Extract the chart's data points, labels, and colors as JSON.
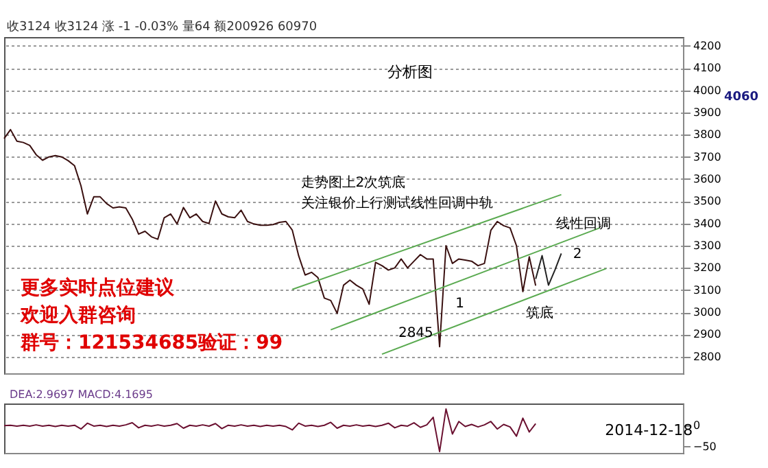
{
  "chart_data": [
    {
      "type": "line",
      "title": "分析图",
      "categories": [
        null,
        null,
        null,
        null,
        null,
        null,
        null,
        null,
        null,
        null,
        null,
        null,
        null,
        null,
        null,
        null,
        null,
        null,
        null,
        null,
        null,
        null,
        null,
        null,
        null,
        null,
        null,
        null,
        null,
        null,
        null,
        null,
        null,
        null,
        null,
        null,
        null,
        null,
        null,
        null,
        null,
        null,
        null,
        null,
        null,
        null,
        null,
        null,
        null,
        null,
        null,
        null,
        null,
        null,
        null,
        null,
        null,
        null,
        null,
        null,
        null,
        null,
        null,
        null,
        null,
        null,
        null,
        null,
        null,
        null,
        null,
        null,
        null,
        null,
        null,
        null,
        null,
        null,
        null,
        null,
        null,
        null,
        null,
        null,
        null,
        null,
        null,
        null,
        null,
        null,
        null,
        null,
        null,
        null,
        null,
        null,
        null,
        null,
        null,
        null,
        null,
        null,
        null,
        null,
        null,
        null,
        null
      ],
      "ylim": [
        2725,
        4240
      ],
      "yticks": [
        2800,
        2900,
        3000,
        3100,
        3200,
        3300,
        3400,
        3500,
        3600,
        3700,
        3800,
        3900,
        4000,
        4100,
        4200
      ],
      "tick_labels": "y",
      "grid": "y",
      "series": [
        {
          "color": "#3a1010",
          "values": [
            3783,
            3823,
            3771,
            3765,
            3752,
            3710,
            3685,
            3700,
            3706,
            3700,
            3683,
            3660,
            3570,
            3443,
            3520,
            3520,
            3490,
            3470,
            3475,
            3470,
            3420,
            3352,
            3365,
            3340,
            3329,
            3426,
            3443,
            3398,
            3472,
            3426,
            3443,
            3409,
            3400,
            3501,
            3443,
            3430,
            3426,
            3460,
            3409,
            3398,
            3392,
            3392,
            3395,
            3405,
            3409,
            3370,
            3254,
            3168,
            3180,
            3156,
            3064,
            3053,
            2995,
            3122,
            3145,
            3122,
            3105,
            3036,
            3225,
            3210,
            3190,
            3200,
            3240,
            3200,
            3230,
            3260,
            3240,
            3240,
            2845,
            3300,
            3220,
            3240,
            3235,
            3230,
            3210,
            3220,
            3369,
            3409,
            3390,
            3380,
            3300,
            3093,
            3250,
            3120,
            null,
            null,
            null,
            null,
            null,
            null,
            null,
            null,
            null,
            null,
            null,
            null,
            null,
            null,
            null,
            null,
            null,
            null,
            null,
            null,
            null,
            null,
            null
          ]
        },
        {
          "color": "#5aaa50",
          "values": [
            null,
            null,
            null,
            null,
            null,
            null,
            null,
            null,
            null,
            null,
            null,
            null,
            null,
            null,
            null,
            null,
            null,
            null,
            null,
            null,
            null,
            null,
            null,
            null,
            null,
            null,
            null,
            null,
            null,
            null,
            null,
            null,
            null,
            null,
            null,
            null,
            null,
            null,
            null,
            null,
            null,
            null,
            null,
            null,
            null,
            3103,
            null,
            null,
            null,
            null,
            null,
            null,
            null,
            null,
            null,
            null,
            null,
            null,
            null,
            null,
            null,
            null,
            null,
            null,
            null,
            null,
            null,
            null,
            null,
            null,
            null,
            null,
            null,
            null,
            null,
            null,
            null,
            null,
            null,
            null,
            null,
            null,
            null,
            null,
            null,
            null,
            null,
            3530,
            null,
            null,
            null,
            null,
            null,
            null,
            null,
            null,
            null,
            null,
            null,
            null,
            null,
            null,
            null,
            null,
            null,
            null,
            null
          ]
        },
        {
          "color": "#5aaa50",
          "values": [
            null,
            null,
            null,
            null,
            null,
            null,
            null,
            null,
            null,
            null,
            null,
            null,
            null,
            null,
            null,
            null,
            null,
            null,
            null,
            null,
            null,
            null,
            null,
            null,
            null,
            null,
            null,
            null,
            null,
            null,
            null,
            null,
            null,
            null,
            null,
            null,
            null,
            null,
            null,
            null,
            null,
            null,
            null,
            null,
            null,
            null,
            null,
            null,
            null,
            null,
            null,
            2921,
            null,
            null,
            null,
            null,
            null,
            null,
            null,
            null,
            null,
            null,
            null,
            null,
            null,
            null,
            null,
            null,
            null,
            null,
            null,
            null,
            null,
            null,
            null,
            null,
            null,
            null,
            null,
            null,
            null,
            null,
            null,
            null,
            null,
            null,
            null,
            null,
            null,
            null,
            null,
            null,
            null,
            3380,
            null,
            null,
            null,
            null,
            null,
            null,
            null,
            null,
            null,
            null,
            null,
            null,
            null
          ]
        },
        {
          "color": "#5aaa50",
          "values": [
            null,
            null,
            null,
            null,
            null,
            null,
            null,
            null,
            null,
            null,
            null,
            null,
            null,
            null,
            null,
            null,
            null,
            null,
            null,
            null,
            null,
            null,
            null,
            null,
            null,
            null,
            null,
            null,
            null,
            null,
            null,
            null,
            null,
            null,
            null,
            null,
            null,
            null,
            null,
            null,
            null,
            null,
            null,
            null,
            null,
            null,
            null,
            null,
            null,
            null,
            null,
            null,
            null,
            null,
            null,
            null,
            null,
            null,
            null,
            2811,
            null,
            null,
            null,
            null,
            null,
            null,
            null,
            null,
            null,
            null,
            null,
            null,
            null,
            null,
            null,
            null,
            null,
            null,
            null,
            null,
            null,
            null,
            null,
            null,
            null,
            null,
            null,
            null,
            null,
            null,
            null,
            null,
            null,
            null,
            3197,
            null,
            null,
            null,
            null,
            null,
            null,
            null,
            null,
            null,
            null,
            null,
            null
          ]
        },
        {
          "color": "#222222",
          "values": [
            null,
            null,
            null,
            null,
            null,
            null,
            null,
            null,
            null,
            null,
            null,
            null,
            null,
            null,
            null,
            null,
            null,
            null,
            null,
            null,
            null,
            null,
            null,
            null,
            null,
            null,
            null,
            null,
            null,
            null,
            null,
            null,
            null,
            null,
            null,
            null,
            null,
            null,
            null,
            null,
            null,
            null,
            null,
            null,
            null,
            null,
            null,
            null,
            null,
            null,
            null,
            null,
            null,
            null,
            null,
            null,
            null,
            null,
            null,
            null,
            null,
            null,
            null,
            null,
            null,
            null,
            null,
            null,
            null,
            null,
            null,
            null,
            null,
            null,
            null,
            null,
            null,
            null,
            null,
            null,
            null,
            null,
            null,
            3150,
            3255,
            3122,
            3190,
            3265,
            null,
            null,
            null,
            null,
            null,
            null,
            null,
            null,
            null,
            null,
            null,
            null,
            null,
            null,
            null,
            null,
            null,
            null,
            null
          ]
        }
      ],
      "annotations": [
        "收3124 收3124 涨 -1 -0.03% 量64 额200926 60970",
        "4060",
        "走势图上2次筑底",
        "关注银价上行测试线性回调中轨",
        "更多实时点位建议",
        "欢迎入群咨询",
        "群号：121534685验证：99",
        "1",
        "2",
        "筑底",
        "线性回调",
        {
          "text": "2845",
          "y": 2845
        }
      ]
    },
    {
      "type": "line",
      "categories": [
        null,
        null,
        null,
        null,
        null,
        null,
        null,
        null,
        null,
        null,
        null,
        null,
        null,
        null,
        null,
        null,
        null,
        null,
        null,
        null,
        null,
        null,
        null,
        null,
        null,
        null,
        null,
        null,
        null,
        null,
        null,
        null,
        null,
        null,
        null,
        null,
        null,
        null,
        null,
        null,
        null,
        null,
        null,
        null,
        null,
        null,
        null,
        null,
        null,
        null,
        null,
        null,
        null,
        null,
        null,
        null,
        null,
        null,
        null,
        null,
        null,
        null,
        null,
        null,
        null,
        null,
        null,
        null,
        null,
        null,
        null,
        null,
        null,
        null,
        null,
        null,
        null,
        null,
        null,
        null,
        null,
        null,
        null,
        null,
        null,
        null,
        null,
        null,
        null,
        null,
        null,
        null,
        null,
        null,
        null,
        null,
        null,
        null,
        null,
        null,
        null,
        null,
        null,
        null,
        null,
        null,
        null
      ],
      "ylim": [
        -65,
        53
      ],
      "yticks": [
        -50,
        0
      ],
      "tick_labels": "y",
      "series": [
        {
          "color": "#6a1030",
          "values": [
            0,
            1,
            -1,
            1,
            -1,
            2,
            -1,
            1,
            -2,
            1,
            -1,
            1,
            -8,
            6,
            -1,
            1,
            -2,
            1,
            -1,
            2,
            7,
            -5,
            1,
            -1,
            2,
            -1,
            1,
            5,
            -6,
            1,
            -1,
            2,
            -1,
            5,
            -7,
            1,
            -1,
            2,
            -1,
            1,
            -2,
            1,
            -1,
            1,
            -2,
            -10,
            6,
            -1,
            1,
            -2,
            1,
            8,
            -6,
            1,
            -1,
            2,
            -1,
            1,
            -2,
            1,
            6,
            -5,
            1,
            -1,
            7,
            -4,
            2,
            20,
            -62,
            40,
            -20,
            10,
            -2,
            3,
            -3,
            2,
            10,
            -8,
            3,
            -3,
            -25,
            18,
            -15,
            5,
            null,
            null,
            null,
            null,
            null,
            null,
            null,
            null,
            null,
            null,
            null,
            null,
            null,
            null,
            null,
            null,
            null,
            null,
            null,
            null,
            null,
            null,
            null
          ]
        }
      ],
      "annotations": [
        "DEA:2.9697 MACD:4.1695",
        "2014-12-18"
      ]
    }
  ]
}
